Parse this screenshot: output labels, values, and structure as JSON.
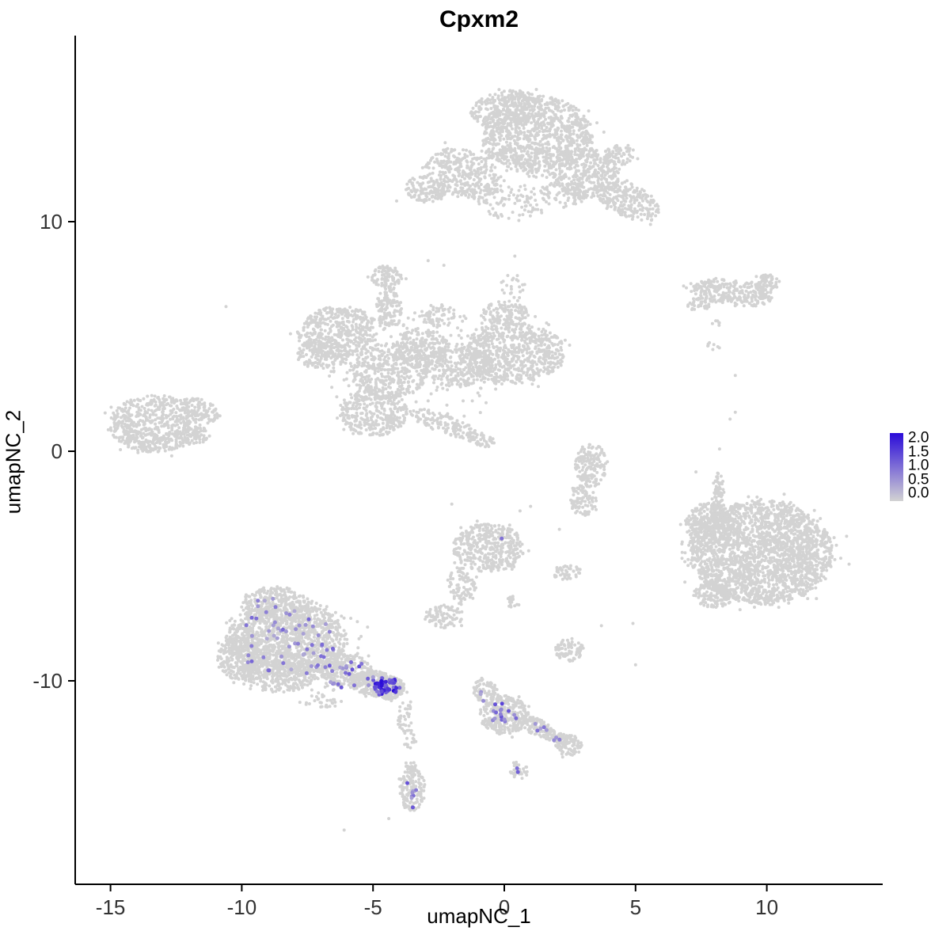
{
  "chart_data": {
    "type": "scatter",
    "title": "Cpxm2",
    "xlabel": "umapNC_1",
    "ylabel": "umapNC_2",
    "x_ticks": [
      -15,
      -10,
      -5,
      0,
      5,
      10
    ],
    "y_ticks": [
      10,
      0,
      -10
    ],
    "xlim": [
      -16.3,
      14.4
    ],
    "ylim": [
      -18.9,
      18.1
    ],
    "grid": false,
    "legend": {
      "position": "right",
      "labels": [
        "2.0",
        "1.5",
        "1.0",
        "0.5",
        "0.0"
      ],
      "vmin": 0.0,
      "vmax": 2.0
    },
    "colors": {
      "low": "#D3D3D3",
      "high": "#2A0BD9",
      "axis": "#000000",
      "tick_text": "#333333"
    },
    "point_radius_px": 2.0,
    "expression_radius_px": 2.5,
    "seed": 42,
    "background_clusters": [
      [
        1.2,
        13.8,
        2.1,
        1.7,
        0,
        950
      ],
      [
        0.1,
        14.9,
        1.4,
        0.8,
        10,
        260
      ],
      [
        -1.6,
        12.1,
        1.5,
        1.0,
        -25,
        320
      ],
      [
        -3.0,
        11.4,
        0.8,
        0.55,
        -15,
        130
      ],
      [
        3.1,
        12.1,
        1.3,
        1.1,
        0,
        330
      ],
      [
        4.7,
        10.9,
        1.3,
        0.75,
        -30,
        240
      ],
      [
        4.4,
        12.9,
        0.6,
        0.45,
        0,
        70
      ],
      [
        0.3,
        10.9,
        1.3,
        0.8,
        0,
        90
      ],
      [
        2.2,
        11.2,
        0.9,
        0.6,
        0,
        70
      ],
      [
        1.2,
        12.6,
        3.0,
        2.0,
        0,
        80
      ],
      [
        8.7,
        6.9,
        1.6,
        0.55,
        -8,
        260
      ],
      [
        9.95,
        7.35,
        0.55,
        0.35,
        0,
        70
      ],
      [
        7.4,
        6.4,
        0.45,
        0.3,
        0,
        35
      ],
      [
        8.1,
        5.6,
        0.2,
        0.15,
        0,
        6
      ],
      [
        8.0,
        4.6,
        0.25,
        0.2,
        0,
        8
      ],
      [
        -6.4,
        5.2,
        1.5,
        1.1,
        10,
        430
      ],
      [
        -6.9,
        4.2,
        1.0,
        0.6,
        0,
        140
      ],
      [
        -4.4,
        3.5,
        1.5,
        1.2,
        0,
        420
      ],
      [
        -5.0,
        1.7,
        1.3,
        1.05,
        0,
        330
      ],
      [
        -3.2,
        4.5,
        1.1,
        0.85,
        0,
        220
      ],
      [
        -4.4,
        6.2,
        0.5,
        1.0,
        0,
        120
      ],
      [
        -4.5,
        7.6,
        0.6,
        0.5,
        0,
        90
      ],
      [
        0.3,
        4.3,
        2.0,
        1.35,
        0,
        720
      ],
      [
        0.0,
        6.0,
        0.9,
        0.5,
        0,
        110
      ],
      [
        0.3,
        7.1,
        0.5,
        0.6,
        0,
        25
      ],
      [
        -1.8,
        3.7,
        1.3,
        0.9,
        0,
        260
      ],
      [
        -2.3,
        1.2,
        1.4,
        0.4,
        -22,
        130
      ],
      [
        -0.9,
        0.5,
        0.55,
        0.3,
        -15,
        45
      ],
      [
        -2.5,
        5.9,
        0.7,
        0.5,
        0,
        60
      ],
      [
        -3.5,
        3.8,
        3.8,
        2.6,
        0,
        120
      ],
      [
        -13.3,
        1.2,
        1.75,
        1.25,
        0,
        600
      ],
      [
        -11.6,
        1.8,
        0.8,
        0.45,
        -25,
        90
      ],
      [
        -11.8,
        0.7,
        0.6,
        0.4,
        0,
        60
      ],
      [
        3.3,
        -0.6,
        0.6,
        0.95,
        0,
        150
      ],
      [
        3.0,
        -2.1,
        0.5,
        0.75,
        0,
        90
      ],
      [
        -0.6,
        -4.2,
        1.35,
        1.05,
        0,
        400
      ],
      [
        -1.6,
        -5.9,
        0.5,
        0.85,
        15,
        80
      ],
      [
        -2.3,
        -7.2,
        0.75,
        0.5,
        0,
        90
      ],
      [
        2.4,
        -5.3,
        0.55,
        0.35,
        0,
        45
      ],
      [
        2.45,
        -8.65,
        0.55,
        0.5,
        0,
        80
      ],
      [
        0.3,
        -6.6,
        0.3,
        0.25,
        0,
        20
      ],
      [
        9.8,
        -4.4,
        2.7,
        2.25,
        0,
        2100
      ],
      [
        7.8,
        -3.2,
        0.9,
        0.95,
        0,
        260
      ],
      [
        8.0,
        -6.2,
        0.8,
        0.6,
        0,
        140
      ],
      [
        8.15,
        -2.0,
        0.22,
        1.1,
        0,
        80
      ],
      [
        9.7,
        -4.5,
        3.0,
        2.5,
        0,
        100
      ],
      [
        -8.3,
        -8.2,
        2.3,
        1.6,
        0,
        1250
      ],
      [
        -8.7,
        -6.7,
        1.3,
        0.8,
        0,
        300
      ],
      [
        -10.1,
        -9.0,
        0.85,
        0.95,
        0,
        240
      ],
      [
        -8.6,
        -9.8,
        1.4,
        0.7,
        0,
        280
      ],
      [
        -6.1,
        -9.5,
        1.1,
        0.75,
        -15,
        280
      ],
      [
        -5.0,
        -10.1,
        0.9,
        0.55,
        -10,
        240
      ],
      [
        -4.4,
        -10.3,
        0.6,
        0.5,
        0,
        260
      ],
      [
        -7.0,
        -10.9,
        0.8,
        0.3,
        0,
        30
      ],
      [
        -7.5,
        -8.6,
        2.8,
        2.0,
        0,
        80
      ],
      [
        -3.8,
        -11.5,
        0.3,
        0.8,
        0,
        35
      ],
      [
        -3.6,
        -12.6,
        0.25,
        0.5,
        0,
        15
      ],
      [
        -3.5,
        -14.7,
        0.5,
        0.95,
        0,
        150
      ],
      [
        -3.6,
        -13.6,
        0.25,
        0.3,
        0,
        8
      ],
      [
        0.0,
        -11.5,
        0.95,
        0.85,
        0,
        280
      ],
      [
        -0.7,
        -10.5,
        0.45,
        0.6,
        20,
        70
      ],
      [
        1.2,
        -12.0,
        0.7,
        0.35,
        -28,
        90
      ],
      [
        2.0,
        -12.5,
        0.55,
        0.3,
        -28,
        60
      ],
      [
        2.45,
        -12.8,
        0.5,
        0.45,
        0,
        90
      ],
      [
        0.55,
        -13.9,
        0.35,
        0.4,
        0,
        35
      ]
    ],
    "background_singles": [
      [
        -10.6,
        6.3
      ],
      [
        -2.9,
        8.3
      ],
      [
        -2.3,
        8.1
      ],
      [
        0.4,
        8.5
      ],
      [
        -4.1,
        10.9
      ],
      [
        8.2,
        0.1
      ],
      [
        8.8,
        1.7
      ],
      [
        8.6,
        1.4
      ],
      [
        8.8,
        3.3
      ],
      [
        7.3,
        -0.9
      ],
      [
        4.9,
        -7.5
      ],
      [
        3.7,
        -7.6
      ],
      [
        5.0,
        -9.3
      ],
      [
        1.0,
        -2.4
      ],
      [
        -2.0,
        -2.3
      ],
      [
        0.6,
        -2.6
      ],
      [
        2.1,
        -3.4
      ],
      [
        -6.1,
        -16.5
      ],
      [
        -4.4,
        -16.0
      ]
    ],
    "expression_clusters": [
      [
        -8.3,
        -8.4,
        2.1,
        1.45,
        0,
        55,
        0.4,
        1.1
      ],
      [
        -8.7,
        -6.9,
        1.1,
        0.6,
        0,
        8,
        0.4,
        0.9
      ],
      [
        -5.7,
        -9.8,
        1.3,
        0.6,
        -10,
        26,
        0.5,
        1.3
      ],
      [
        -4.45,
        -10.25,
        0.5,
        0.38,
        0,
        45,
        0.9,
        2.0
      ],
      [
        -4.7,
        -10.12,
        0.16,
        0.12,
        0,
        6,
        1.7,
        2.0
      ],
      [
        0.0,
        -11.4,
        0.6,
        0.5,
        0,
        16,
        0.5,
        1.5
      ],
      [
        1.25,
        -12.0,
        0.5,
        0.2,
        -28,
        5,
        0.5,
        1.0
      ],
      [
        1.95,
        -12.45,
        0.3,
        0.15,
        -28,
        3,
        0.5,
        0.9
      ],
      [
        -3.5,
        -15.0,
        0.28,
        0.55,
        0,
        8,
        0.5,
        1.3
      ],
      [
        0.55,
        -13.9,
        0.12,
        0.12,
        0,
        2,
        0.9,
        1.3
      ],
      [
        -0.6,
        -10.6,
        0.3,
        0.4,
        0,
        3,
        0.4,
        0.8
      ]
    ],
    "expression_singles": [
      [
        -0.1,
        -3.8,
        1.0
      ]
    ]
  }
}
